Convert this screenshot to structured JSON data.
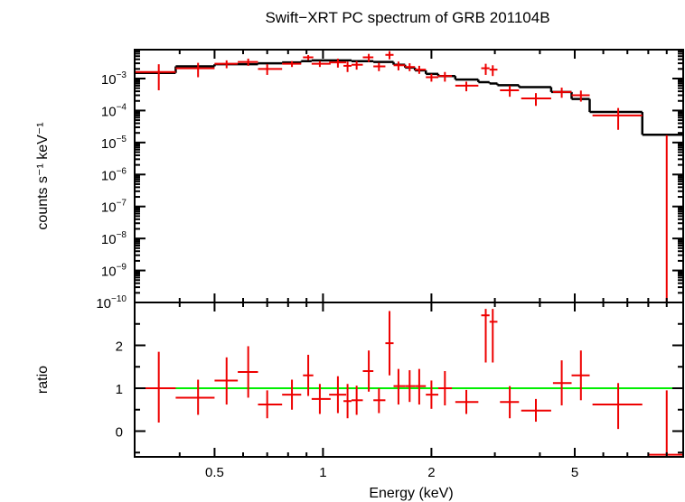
{
  "chart_data": [
    {
      "type": "scatter",
      "panel": "spectrum",
      "title": "Swift−XRT PC spectrum of GRB 201104B",
      "xlabel": "Energy (keV)",
      "ylabel": "counts s⁻¹ keV⁻¹",
      "x_scale": "log",
      "y_scale": "log",
      "xlim": [
        0.3,
        10
      ],
      "ylim": [
        1e-10,
        0.008
      ],
      "x_ticks": [
        0.5,
        1,
        2,
        5
      ],
      "x_tick_labels": [
        "0.5",
        "1",
        "2",
        "5"
      ],
      "y_ticks": [
        1e-10,
        1e-09,
        1e-08,
        1e-07,
        1e-06,
        1e-05,
        0.0001,
        0.001
      ],
      "y_tick_bases": [
        "10",
        "10",
        "10",
        "10",
        "10",
        "10",
        "10",
        "10"
      ],
      "y_tick_exps": [
        "−10",
        "−9",
        "−8",
        "−7",
        "−6",
        "−5",
        "−4",
        "−3"
      ],
      "colors": {
        "data": "#ee0000",
        "model": "#000000"
      },
      "data_points": [
        {
          "x": 0.35,
          "xlo": 0.3,
          "xhi": 0.39,
          "y": 0.0016,
          "ylo": 0.00043,
          "yhi": 0.0028
        },
        {
          "x": 0.45,
          "xlo": 0.39,
          "xhi": 0.5,
          "y": 0.0021,
          "ylo": 0.0011,
          "yhi": 0.0031
        },
        {
          "x": 0.54,
          "xlo": 0.5,
          "xhi": 0.58,
          "y": 0.0029,
          "ylo": 0.0021,
          "yhi": 0.0037
        },
        {
          "x": 0.62,
          "xlo": 0.58,
          "xhi": 0.66,
          "y": 0.0033,
          "ylo": 0.0025,
          "yhi": 0.0042
        },
        {
          "x": 0.7,
          "xlo": 0.66,
          "xhi": 0.77,
          "y": 0.002,
          "ylo": 0.0013,
          "yhi": 0.0028
        },
        {
          "x": 0.82,
          "xlo": 0.77,
          "xhi": 0.87,
          "y": 0.0029,
          "ylo": 0.0023,
          "yhi": 0.0035
        },
        {
          "x": 0.91,
          "xlo": 0.88,
          "xhi": 0.94,
          "y": 0.0046,
          "ylo": 0.0038,
          "yhi": 0.0054
        },
        {
          "x": 0.98,
          "xlo": 0.93,
          "xhi": 1.05,
          "y": 0.0029,
          "ylo": 0.0023,
          "yhi": 0.0035
        },
        {
          "x": 1.1,
          "xlo": 1.04,
          "xhi": 1.16,
          "y": 0.0032,
          "ylo": 0.0022,
          "yhi": 0.0042
        },
        {
          "x": 1.17,
          "xlo": 1.14,
          "xhi": 1.2,
          "y": 0.0025,
          "ylo": 0.0016,
          "yhi": 0.0034
        },
        {
          "x": 1.24,
          "xlo": 1.2,
          "xhi": 1.29,
          "y": 0.0027,
          "ylo": 0.0019,
          "yhi": 0.0035
        },
        {
          "x": 1.34,
          "xlo": 1.29,
          "xhi": 1.38,
          "y": 0.0046,
          "ylo": 0.0033,
          "yhi": 0.0059
        },
        {
          "x": 1.43,
          "xlo": 1.38,
          "xhi": 1.49,
          "y": 0.0024,
          "ylo": 0.0017,
          "yhi": 0.0031
        },
        {
          "x": 1.53,
          "xlo": 1.49,
          "xhi": 1.57,
          "y": 0.0055,
          "ylo": 0.004,
          "yhi": 0.0072
        },
        {
          "x": 1.62,
          "xlo": 1.57,
          "xhi": 1.69,
          "y": 0.0026,
          "ylo": 0.0018,
          "yhi": 0.0034
        },
        {
          "x": 1.74,
          "xlo": 1.69,
          "xhi": 1.8,
          "y": 0.0023,
          "ylo": 0.0017,
          "yhi": 0.003
        },
        {
          "x": 1.85,
          "xlo": 1.8,
          "xhi": 1.93,
          "y": 0.0019,
          "ylo": 0.0014,
          "yhi": 0.0025
        },
        {
          "x": 2.0,
          "xlo": 1.93,
          "xhi": 2.09,
          "y": 0.0011,
          "ylo": 0.0008,
          "yhi": 0.0014
        },
        {
          "x": 2.18,
          "xlo": 2.09,
          "xhi": 2.28,
          "y": 0.0012,
          "ylo": 0.0008,
          "yhi": 0.0016
        },
        {
          "x": 2.5,
          "xlo": 2.33,
          "xhi": 2.7,
          "y": 0.0006,
          "ylo": 0.0004,
          "yhi": 0.0008
        },
        {
          "x": 2.83,
          "xlo": 2.75,
          "xhi": 2.9,
          "y": 0.0021,
          "ylo": 0.0013,
          "yhi": 0.0029
        },
        {
          "x": 2.96,
          "xlo": 2.9,
          "xhi": 3.05,
          "y": 0.0019,
          "ylo": 0.0012,
          "yhi": 0.0026
        },
        {
          "x": 3.3,
          "xlo": 3.1,
          "xhi": 3.5,
          "y": 0.00043,
          "ylo": 0.00027,
          "yhi": 0.0006
        },
        {
          "x": 3.9,
          "xlo": 3.55,
          "xhi": 4.3,
          "y": 0.00024,
          "ylo": 0.00014,
          "yhi": 0.00035
        },
        {
          "x": 4.6,
          "xlo": 4.35,
          "xhi": 4.9,
          "y": 0.00038,
          "ylo": 0.00025,
          "yhi": 0.00052
        },
        {
          "x": 5.2,
          "xlo": 4.9,
          "xhi": 5.5,
          "y": 0.0003,
          "ylo": 0.00019,
          "yhi": 0.00042
        },
        {
          "x": 6.6,
          "xlo": 5.6,
          "xhi": 7.7,
          "y": 7e-05,
          "ylo": 2.5e-05,
          "yhi": 0.00012
        },
        {
          "x": 9.0,
          "xlo": 8.0,
          "xhi": 10.0,
          "y": 1e-10,
          "ylo": 1e-10,
          "yhi": 1.7e-05
        }
      ],
      "model": [
        {
          "x1": 0.3,
          "x2": 0.39,
          "y": 0.0015
        },
        {
          "x1": 0.39,
          "x2": 0.5,
          "y": 0.0024
        },
        {
          "x1": 0.5,
          "x2": 0.66,
          "y": 0.0028
        },
        {
          "x1": 0.66,
          "x2": 0.77,
          "y": 0.003
        },
        {
          "x1": 0.77,
          "x2": 0.87,
          "y": 0.0032
        },
        {
          "x1": 0.87,
          "x2": 0.93,
          "y": 0.0035
        },
        {
          "x1": 0.93,
          "x2": 1.2,
          "y": 0.0037
        },
        {
          "x1": 1.2,
          "x2": 1.38,
          "y": 0.0035
        },
        {
          "x1": 1.38,
          "x2": 1.57,
          "y": 0.0033
        },
        {
          "x1": 1.57,
          "x2": 1.69,
          "y": 0.0027
        },
        {
          "x1": 1.69,
          "x2": 1.8,
          "y": 0.0022
        },
        {
          "x1": 1.8,
          "x2": 1.93,
          "y": 0.0018
        },
        {
          "x1": 1.93,
          "x2": 2.09,
          "y": 0.0014
        },
        {
          "x1": 2.09,
          "x2": 2.33,
          "y": 0.0012
        },
        {
          "x1": 2.33,
          "x2": 2.7,
          "y": 0.00093
        },
        {
          "x1": 2.7,
          "x2": 2.9,
          "y": 0.00077
        },
        {
          "x1": 2.9,
          "x2": 3.05,
          "y": 0.0007
        },
        {
          "x1": 3.05,
          "x2": 3.5,
          "y": 0.00062
        },
        {
          "x1": 3.5,
          "x2": 4.3,
          "y": 0.00054
        },
        {
          "x1": 4.3,
          "x2": 4.9,
          "y": 0.00038
        },
        {
          "x1": 4.9,
          "x2": 5.5,
          "y": 0.00023
        },
        {
          "x1": 5.5,
          "x2": 7.7,
          "y": 9e-05
        },
        {
          "x1": 7.7,
          "x2": 10.0,
          "y": 1.75e-05
        }
      ]
    },
    {
      "type": "scatter",
      "panel": "ratio",
      "xlabel": "Energy (keV)",
      "ylabel": "ratio",
      "x_scale": "log",
      "xlim": [
        0.3,
        10
      ],
      "ylim": [
        -0.6,
        3.0
      ],
      "x_ticks": [
        0.5,
        1,
        2,
        5
      ],
      "x_tick_labels": [
        "0.5",
        "1",
        "2",
        "5"
      ],
      "y_ticks": [
        0,
        1,
        2
      ],
      "y_tick_labels": [
        "0",
        "1",
        "2"
      ],
      "reference_line": 1,
      "colors": {
        "data": "#ee0000",
        "reference": "#00ee00"
      },
      "data_points": [
        {
          "x": 0.35,
          "xlo": 0.3,
          "xhi": 0.39,
          "y": 1.0,
          "ylo": 0.2,
          "yhi": 1.85
        },
        {
          "x": 0.45,
          "xlo": 0.39,
          "xhi": 0.5,
          "y": 0.78,
          "ylo": 0.38,
          "yhi": 1.2
        },
        {
          "x": 0.54,
          "xlo": 0.5,
          "xhi": 0.58,
          "y": 1.18,
          "ylo": 0.62,
          "yhi": 1.72
        },
        {
          "x": 0.62,
          "xlo": 0.58,
          "xhi": 0.66,
          "y": 1.38,
          "ylo": 0.78,
          "yhi": 1.98
        },
        {
          "x": 0.7,
          "xlo": 0.66,
          "xhi": 0.77,
          "y": 0.62,
          "ylo": 0.3,
          "yhi": 0.95
        },
        {
          "x": 0.82,
          "xlo": 0.77,
          "xhi": 0.87,
          "y": 0.85,
          "ylo": 0.5,
          "yhi": 1.2
        },
        {
          "x": 0.91,
          "xlo": 0.88,
          "xhi": 0.94,
          "y": 1.3,
          "ylo": 0.82,
          "yhi": 1.78
        },
        {
          "x": 0.98,
          "xlo": 0.93,
          "xhi": 1.05,
          "y": 0.75,
          "ylo": 0.4,
          "yhi": 1.1
        },
        {
          "x": 1.1,
          "xlo": 1.04,
          "xhi": 1.16,
          "y": 0.85,
          "ylo": 0.42,
          "yhi": 1.28
        },
        {
          "x": 1.17,
          "xlo": 1.14,
          "xhi": 1.2,
          "y": 0.7,
          "ylo": 0.3,
          "yhi": 1.1
        },
        {
          "x": 1.24,
          "xlo": 1.2,
          "xhi": 1.29,
          "y": 0.72,
          "ylo": 0.38,
          "yhi": 1.06
        },
        {
          "x": 1.34,
          "xlo": 1.29,
          "xhi": 1.38,
          "y": 1.4,
          "ylo": 0.92,
          "yhi": 1.88
        },
        {
          "x": 1.43,
          "xlo": 1.38,
          "xhi": 1.49,
          "y": 0.72,
          "ylo": 0.42,
          "yhi": 1.0
        },
        {
          "x": 1.53,
          "xlo": 1.49,
          "xhi": 1.57,
          "y": 2.05,
          "ylo": 1.3,
          "yhi": 2.8
        },
        {
          "x": 1.62,
          "xlo": 1.57,
          "xhi": 1.69,
          "y": 1.05,
          "ylo": 0.62,
          "yhi": 1.45
        },
        {
          "x": 1.74,
          "xlo": 1.69,
          "xhi": 1.8,
          "y": 1.05,
          "ylo": 0.68,
          "yhi": 1.42
        },
        {
          "x": 1.85,
          "xlo": 1.8,
          "xhi": 1.93,
          "y": 1.05,
          "ylo": 0.62,
          "yhi": 1.45
        },
        {
          "x": 2.0,
          "xlo": 1.93,
          "xhi": 2.09,
          "y": 0.85,
          "ylo": 0.52,
          "yhi": 1.18
        },
        {
          "x": 2.18,
          "xlo": 2.09,
          "xhi": 2.28,
          "y": 1.0,
          "ylo": 0.6,
          "yhi": 1.4
        },
        {
          "x": 2.5,
          "xlo": 2.33,
          "xhi": 2.7,
          "y": 0.68,
          "ylo": 0.4,
          "yhi": 0.96
        },
        {
          "x": 2.83,
          "xlo": 2.75,
          "xhi": 2.9,
          "y": 2.7,
          "ylo": 1.6,
          "yhi": 2.85
        },
        {
          "x": 2.96,
          "xlo": 2.9,
          "xhi": 3.05,
          "y": 2.55,
          "ylo": 1.6,
          "yhi": 2.85
        },
        {
          "x": 3.3,
          "xlo": 3.1,
          "xhi": 3.5,
          "y": 0.68,
          "ylo": 0.3,
          "yhi": 1.05
        },
        {
          "x": 3.9,
          "xlo": 3.55,
          "xhi": 4.3,
          "y": 0.48,
          "ylo": 0.22,
          "yhi": 0.75
        },
        {
          "x": 4.6,
          "xlo": 4.35,
          "xhi": 4.9,
          "y": 1.12,
          "ylo": 0.6,
          "yhi": 1.65
        },
        {
          "x": 5.2,
          "xlo": 4.9,
          "xhi": 5.5,
          "y": 1.3,
          "ylo": 0.72,
          "yhi": 1.88
        },
        {
          "x": 6.6,
          "xlo": 5.6,
          "xhi": 7.7,
          "y": 0.62,
          "ylo": 0.05,
          "yhi": 1.12
        },
        {
          "x": 9.0,
          "xlo": 8.0,
          "xhi": 10.0,
          "y": -0.55,
          "ylo": -0.6,
          "yhi": 0.95
        }
      ]
    }
  ]
}
